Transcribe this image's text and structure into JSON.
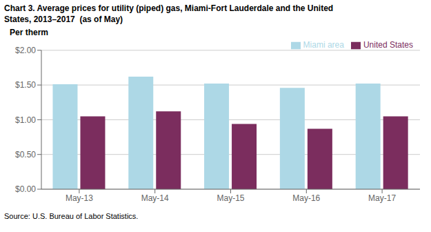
{
  "chart_data": {
    "type": "bar",
    "title": "Chart 3. Average prices for utility (piped) gas, Miami-Fort Lauderdale and the United\nStates, 2013–2017  (as of May)",
    "ylabel": "Per therm",
    "annotations": [
      "Source: U.S. Bureau of Labor Statistics."
    ],
    "categories": [
      "May-13",
      "May-14",
      "May-15",
      "May-16",
      "May-17"
    ],
    "series": [
      {
        "name": "Miami area",
        "color": "#add8e6",
        "values": [
          1.51,
          1.62,
          1.52,
          1.46,
          1.52
        ]
      },
      {
        "name": "United States",
        "color": "#7b2d5e",
        "values": [
          1.05,
          1.12,
          0.94,
          0.87,
          1.05
        ]
      }
    ],
    "ylim": [
      0,
      2
    ],
    "yticks": [
      {
        "value": 0,
        "label": "$0.00"
      },
      {
        "value": 0.5,
        "label": "$0.50"
      },
      {
        "value": 1,
        "label": "$1.00"
      },
      {
        "value": 1.5,
        "label": "$1.50"
      },
      {
        "value": 2,
        "label": "$2.00"
      }
    ],
    "grid": true,
    "legend": "upper right"
  }
}
